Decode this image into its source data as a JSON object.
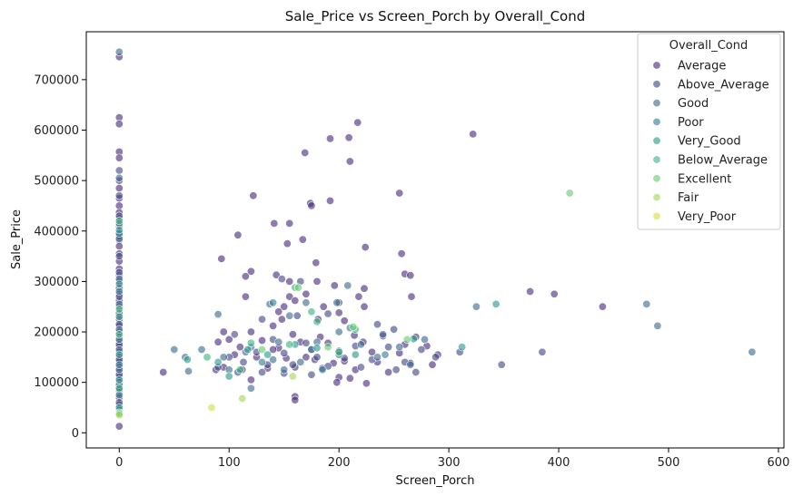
{
  "chart_data": {
    "type": "scatter",
    "title": "Sale_Price vs Screen_Porch by Overall_Cond",
    "xlabel": "Screen_Porch",
    "ylabel": "Sale_Price",
    "xlim": [
      -30,
      605
    ],
    "ylim": [
      -30000,
      795000
    ],
    "xticks": [
      0,
      100,
      200,
      300,
      400,
      500,
      600
    ],
    "yticks": [
      0,
      100000,
      200000,
      300000,
      400000,
      500000,
      600000,
      700000
    ],
    "grid": false,
    "legend": {
      "title": "Overall_Cond",
      "placement": "top-right"
    },
    "series": [
      {
        "name": "Average",
        "color": "#472c7a",
        "points": [
          [
            0,
            745000
          ],
          [
            0,
            625000
          ],
          [
            0,
            612000
          ],
          [
            0,
            557000
          ],
          [
            0,
            545000
          ],
          [
            0,
            500000
          ],
          [
            0,
            485000
          ],
          [
            0,
            465000
          ],
          [
            0,
            450000
          ],
          [
            0,
            437000
          ],
          [
            0,
            425000
          ],
          [
            0,
            410000
          ],
          [
            0,
            395000
          ],
          [
            0,
            382000
          ],
          [
            0,
            370000
          ],
          [
            0,
            355000
          ],
          [
            0,
            340000
          ],
          [
            0,
            325000
          ],
          [
            0,
            312000
          ],
          [
            0,
            300000
          ],
          [
            0,
            287000
          ],
          [
            0,
            275000
          ],
          [
            0,
            262000
          ],
          [
            0,
            250000
          ],
          [
            0,
            237000
          ],
          [
            0,
            225000
          ],
          [
            0,
            212000
          ],
          [
            0,
            200000
          ],
          [
            0,
            190000
          ],
          [
            0,
            180000
          ],
          [
            0,
            170000
          ],
          [
            0,
            160000
          ],
          [
            0,
            150000
          ],
          [
            0,
            140000
          ],
          [
            0,
            130000
          ],
          [
            0,
            120000
          ],
          [
            0,
            110000
          ],
          [
            0,
            100000
          ],
          [
            0,
            90000
          ],
          [
            0,
            80000
          ],
          [
            0,
            70000
          ],
          [
            0,
            55000
          ],
          [
            0,
            13000
          ],
          [
            122,
            470000
          ],
          [
            141,
            415000
          ],
          [
            155,
            415000
          ],
          [
            108,
            392000
          ],
          [
            167,
            383000
          ],
          [
            153,
            375000
          ],
          [
            169,
            555000
          ],
          [
            192,
            583000
          ],
          [
            209,
            585000
          ],
          [
            217,
            615000
          ],
          [
            322,
            592000
          ],
          [
            210,
            538000
          ],
          [
            174,
            455000
          ],
          [
            175,
            450000
          ],
          [
            192,
            460000
          ],
          [
            255,
            475000
          ],
          [
            224,
            368000
          ],
          [
            257,
            355000
          ],
          [
            93,
            345000
          ],
          [
            179,
            337000
          ],
          [
            120,
            320000
          ],
          [
            115,
            310000
          ],
          [
            143,
            313000
          ],
          [
            260,
            315000
          ],
          [
            265,
            312000
          ],
          [
            155,
            300000
          ],
          [
            180,
            300000
          ],
          [
            196,
            292000
          ],
          [
            223,
            286000
          ],
          [
            170,
            275000
          ],
          [
            218,
            270000
          ],
          [
            115,
            270000
          ],
          [
            155,
            270000
          ],
          [
            266,
            270000
          ],
          [
            374,
            280000
          ],
          [
            396,
            275000
          ],
          [
            440,
            250000
          ],
          [
            160,
            262000
          ],
          [
            150,
            250000
          ],
          [
            186,
            250000
          ],
          [
            223,
            250000
          ],
          [
            145,
            240000
          ],
          [
            200,
            238000
          ],
          [
            148,
            225000
          ],
          [
            181,
            225000
          ],
          [
            205,
            222000
          ],
          [
            140,
            212000
          ],
          [
            95,
            200000
          ],
          [
            120,
            200000
          ],
          [
            158,
            195000
          ],
          [
            183,
            190000
          ],
          [
            214,
            193000
          ],
          [
            240,
            192000
          ],
          [
            270,
            190000
          ],
          [
            100,
            185000
          ],
          [
            130,
            183000
          ],
          [
            165,
            180000
          ],
          [
            190,
            178000
          ],
          [
            222,
            180000
          ],
          [
            260,
            175000
          ],
          [
            280,
            172000
          ],
          [
            90,
            180000
          ],
          [
            110,
            170000
          ],
          [
            145,
            168000
          ],
          [
            175,
            165000
          ],
          [
            200,
            162000
          ],
          [
            230,
            160000
          ],
          [
            255,
            158000
          ],
          [
            290,
            155000
          ],
          [
            105,
            155000
          ],
          [
            125,
            150000
          ],
          [
            152,
            148000
          ],
          [
            178,
            145000
          ],
          [
            205,
            142000
          ],
          [
            235,
            140000
          ],
          [
            265,
            138000
          ],
          [
            285,
            135000
          ],
          [
            95,
            130000
          ],
          [
            112,
            125000
          ],
          [
            135,
            128000
          ],
          [
            160,
            130000
          ],
          [
            185,
            128000
          ],
          [
            215,
            125000
          ],
          [
            245,
            120000
          ],
          [
            40,
            120000
          ],
          [
            88,
            125000
          ],
          [
            120,
            105000
          ],
          [
            200,
            110000
          ],
          [
            210,
            108000
          ],
          [
            225,
            98000
          ],
          [
            198,
            100000
          ],
          [
            160,
            72000
          ],
          [
            160,
            65000
          ],
          [
            195,
            138000
          ],
          [
            170,
            150000
          ],
          [
            140,
            165000
          ]
        ]
      },
      {
        "name": "Above_Average",
        "color": "#424985",
        "points": [
          [
            0,
            520000
          ],
          [
            0,
            470000
          ],
          [
            0,
            430000
          ],
          [
            0,
            390000
          ],
          [
            0,
            350000
          ],
          [
            0,
            318000
          ],
          [
            0,
            270000
          ],
          [
            0,
            215000
          ],
          [
            0,
            175000
          ],
          [
            0,
            145000
          ],
          [
            0,
            115000
          ],
          [
            0,
            85000
          ],
          [
            0,
            60000
          ],
          [
            148,
            305000
          ],
          [
            165,
            300000
          ],
          [
            200,
            258000
          ],
          [
            190,
            236000
          ],
          [
            162,
            232000
          ],
          [
            130,
            225000
          ],
          [
            235,
            215000
          ],
          [
            250,
            205000
          ],
          [
            105,
            195000
          ],
          [
            140,
            185000
          ],
          [
            170,
            178000
          ],
          [
            215,
            172000
          ],
          [
            245,
            170000
          ],
          [
            275,
            165000
          ],
          [
            310,
            160000
          ],
          [
            125,
            160000
          ],
          [
            150,
            158000
          ],
          [
            180,
            150000
          ],
          [
            205,
            148000
          ],
          [
            230,
            145000
          ],
          [
            260,
            140000
          ],
          [
            288,
            150000
          ],
          [
            100,
            150000
          ],
          [
            113,
            140000
          ],
          [
            135,
            135000
          ],
          [
            158,
            135000
          ],
          [
            190,
            132000
          ],
          [
            220,
            130000
          ],
          [
            252,
            125000
          ],
          [
            90,
            130000
          ],
          [
            108,
            120000
          ],
          [
            130,
            120000
          ],
          [
            150,
            118000
          ],
          [
            175,
            115000
          ],
          [
            348,
            135000
          ],
          [
            385,
            160000
          ],
          [
            270,
            120000
          ]
        ]
      },
      {
        "name": "Good",
        "color": "#3e6b8e",
        "points": [
          [
            0,
            755000
          ],
          [
            0,
            505000
          ],
          [
            0,
            415000
          ],
          [
            0,
            385000
          ],
          [
            0,
            305000
          ],
          [
            0,
            255000
          ],
          [
            0,
            205000
          ],
          [
            0,
            165000
          ],
          [
            0,
            125000
          ],
          [
            0,
            95000
          ],
          [
            0,
            45000
          ],
          [
            480,
            255000
          ],
          [
            490,
            212000
          ],
          [
            576,
            160000
          ],
          [
            325,
            250000
          ],
          [
            208,
            292000
          ],
          [
            198,
            258000
          ],
          [
            170,
            258000
          ],
          [
            137,
            255000
          ],
          [
            90,
            235000
          ],
          [
            155,
            232000
          ],
          [
            200,
            200000
          ],
          [
            240,
            195000
          ],
          [
            278,
            185000
          ],
          [
            120,
            170000
          ],
          [
            180,
            180000
          ],
          [
            145,
            180000
          ],
          [
            220,
            175000
          ],
          [
            255,
            170000
          ],
          [
            50,
            165000
          ],
          [
            75,
            165000
          ],
          [
            60,
            150000
          ],
          [
            95,
            150000
          ],
          [
            115,
            160000
          ],
          [
            140,
            145000
          ],
          [
            165,
            140000
          ],
          [
            200,
            155000
          ],
          [
            235,
            150000
          ],
          [
            265,
            135000
          ],
          [
            63,
            122000
          ],
          [
            100,
            125000
          ],
          [
            150,
            125000
          ],
          [
            120,
            88000
          ]
        ]
      },
      {
        "name": "Poor",
        "color": "#357c94",
        "points": [
          [
            0,
            395000
          ],
          [
            0,
            280000
          ],
          [
            0,
            185000
          ],
          [
            0,
            135000
          ],
          [
            0,
            75000
          ],
          [
            140,
            258000
          ],
          [
            210,
            208000
          ],
          [
            175,
            165000
          ],
          [
            242,
            155000
          ],
          [
            130,
            140000
          ],
          [
            185,
            125000
          ]
        ]
      },
      {
        "name": "Very_Good",
        "color": "#2a9b8e",
        "points": [
          [
            0,
            402000
          ],
          [
            0,
            295000
          ],
          [
            0,
            230000
          ],
          [
            0,
            155000
          ],
          [
            0,
            105000
          ],
          [
            0,
            50000
          ],
          [
            343,
            255000
          ],
          [
            312,
            170000
          ],
          [
            268,
            186000
          ],
          [
            215,
            155000
          ],
          [
            160,
            175000
          ],
          [
            117,
            165000
          ],
          [
            90,
            140000
          ],
          [
            62,
            145000
          ],
          [
            135,
            155000
          ],
          [
            100,
            112000
          ],
          [
            180,
            168000
          ]
        ]
      },
      {
        "name": "Below_Average",
        "color": "#3cb77f",
        "points": [
          [
            0,
            420000
          ],
          [
            0,
            245000
          ],
          [
            0,
            195000
          ],
          [
            0,
            88000
          ],
          [
            0,
            40000
          ],
          [
            175,
            240000
          ],
          [
            180,
            220000
          ],
          [
            160,
            288000
          ],
          [
            215,
            205000
          ],
          [
            80,
            150000
          ],
          [
            155,
            175000
          ],
          [
            110,
            125000
          ],
          [
            200,
            160000
          ],
          [
            120,
            178000
          ]
        ]
      },
      {
        "name": "Excellent",
        "color": "#66cc71",
        "points": [
          [
            410,
            475000
          ],
          [
            163,
            288000
          ],
          [
            213,
            210000
          ],
          [
            262,
            185000
          ],
          [
            190,
            170000
          ],
          [
            130,
            165000
          ],
          [
            0,
            38000
          ]
        ]
      },
      {
        "name": "Fair",
        "color": "#a6d955",
        "points": [
          [
            112,
            68000
          ],
          [
            158,
            112000
          ],
          [
            0,
            35000
          ]
        ]
      },
      {
        "name": "Very_Poor",
        "color": "#d2e03c",
        "points": [
          [
            84,
            50000
          ]
        ]
      }
    ]
  }
}
